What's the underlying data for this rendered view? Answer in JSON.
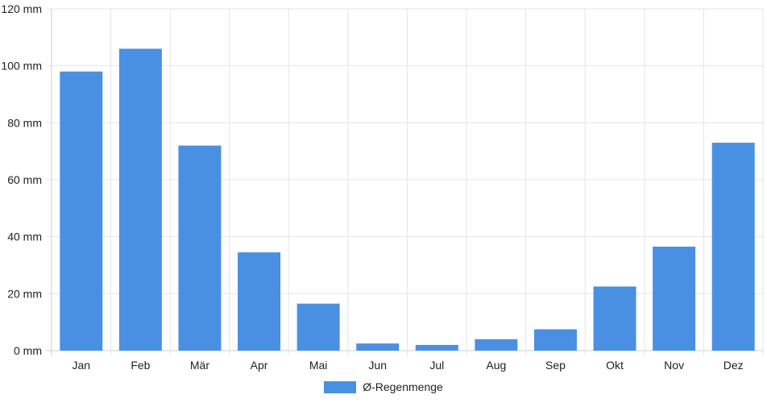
{
  "chart_data": {
    "type": "bar",
    "categories": [
      "Jan",
      "Feb",
      "Mär",
      "Apr",
      "Mai",
      "Jun",
      "Jul",
      "Aug",
      "Sep",
      "Okt",
      "Nov",
      "Dez"
    ],
    "series": [
      {
        "name": "Ø-Regenmenge",
        "values": [
          98,
          106,
          72,
          34.5,
          16.5,
          2.5,
          2,
          4,
          7.5,
          22.5,
          36.5,
          73
        ],
        "color": "#4a90e2"
      }
    ],
    "y_ticks": [
      "0 mm",
      "20 mm",
      "40 mm",
      "60 mm",
      "80 mm",
      "100 mm",
      "120 mm"
    ],
    "ylim": [
      0,
      120
    ],
    "grid": true,
    "legend_position": "bottom-center",
    "grid_color": "#e5e5e5",
    "axis_color": "#cccccc"
  }
}
